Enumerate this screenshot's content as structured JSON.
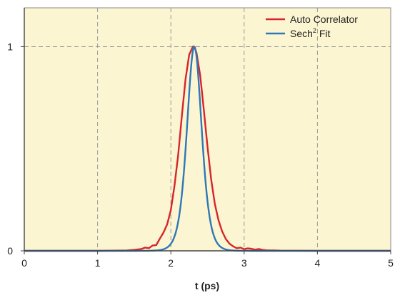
{
  "chart_data": {
    "type": "line",
    "xlabel": "t (ps)",
    "ylabel": "",
    "xlim": [
      0,
      5
    ],
    "ylim": [
      0,
      1.19
    ],
    "x_ticks": [
      "0",
      "1",
      "2",
      "3",
      "4",
      "5"
    ],
    "y_ticks": [
      "0",
      "1"
    ],
    "grid": true,
    "legend_position": "top-right",
    "plot_background": "#fcf5d2",
    "gridline_color": "#999999",
    "series": [
      {
        "name": "Auto Correlator",
        "color": "#d6252d",
        "x": [
          0,
          0.5,
          1.0,
          1.4,
          1.5,
          1.6,
          1.65,
          1.7,
          1.75,
          1.8,
          1.85,
          1.9,
          1.95,
          2.0,
          2.05,
          2.1,
          2.15,
          2.2,
          2.25,
          2.3,
          2.32,
          2.35,
          2.4,
          2.45,
          2.5,
          2.55,
          2.6,
          2.65,
          2.7,
          2.75,
          2.8,
          2.85,
          2.9,
          2.95,
          3.0,
          3.05,
          3.1,
          3.15,
          3.2,
          3.25,
          3.3,
          3.5,
          4.0,
          4.5,
          5.0
        ],
        "y": [
          0,
          0,
          0,
          0.002,
          0.005,
          0.009,
          0.016,
          0.013,
          0.026,
          0.028,
          0.06,
          0.09,
          0.13,
          0.2,
          0.32,
          0.47,
          0.66,
          0.84,
          0.96,
          1.0,
          1.0,
          0.97,
          0.86,
          0.69,
          0.51,
          0.35,
          0.23,
          0.15,
          0.095,
          0.058,
          0.035,
          0.022,
          0.013,
          0.016,
          0.008,
          0.012,
          0.01,
          0.006,
          0.009,
          0.005,
          0.003,
          0.001,
          0,
          0,
          0
        ]
      },
      {
        "name": "Sech² Fit",
        "label_base": "Sech",
        "label_sup": "2",
        "label_rest": " Fit",
        "color": "#2e78b8",
        "function": "sech2",
        "center": 2.32,
        "amplitude": 1.0,
        "tau": 0.135
      }
    ]
  }
}
